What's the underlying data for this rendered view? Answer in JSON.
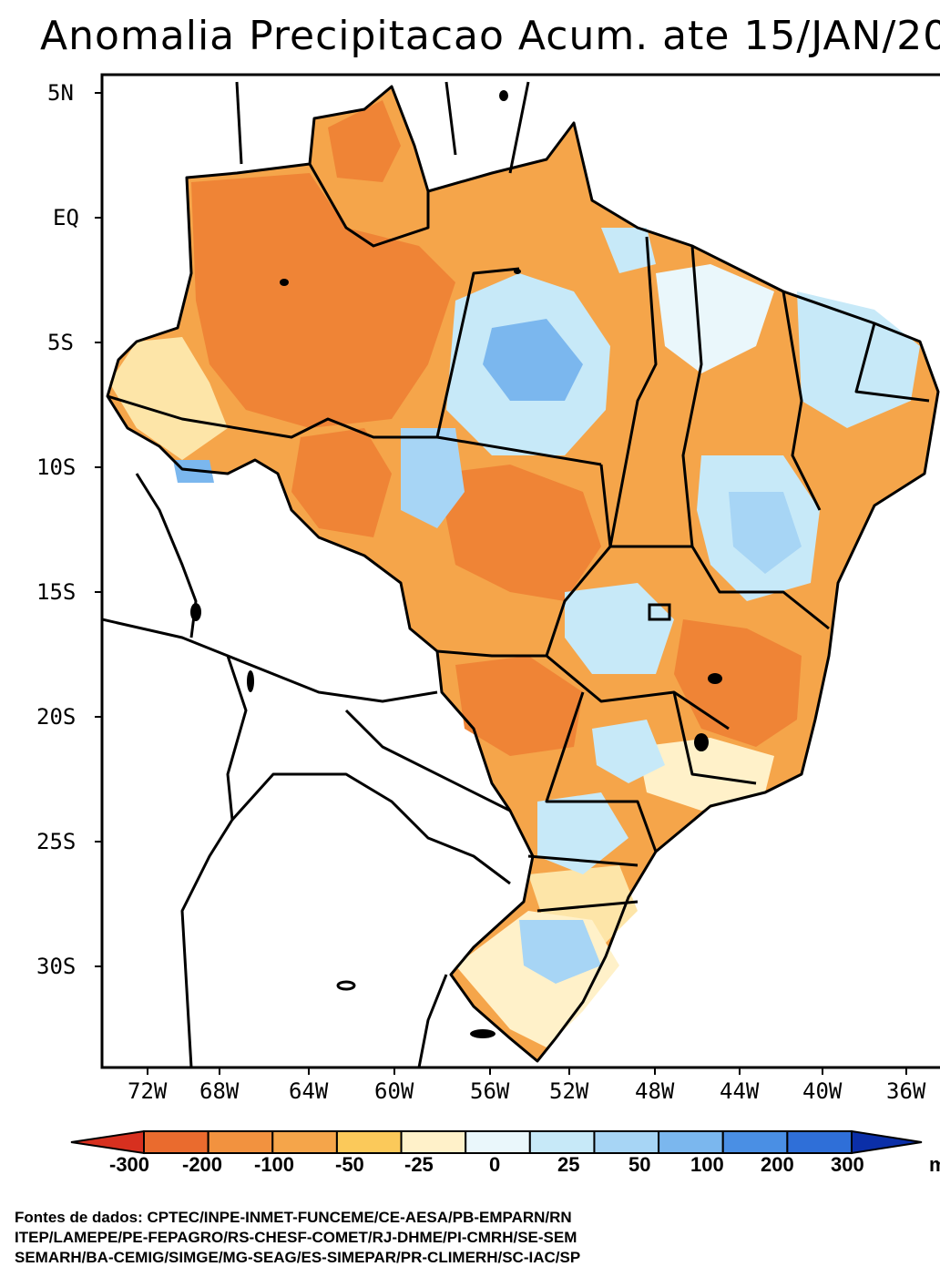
{
  "title": "Anomalia Precipitacao Acum. ate 15/JAN/20",
  "lat_ticks": [
    "5N",
    "EQ",
    "5S",
    "10S",
    "15S",
    "20S",
    "25S",
    "30S"
  ],
  "lon_ticks": [
    "72W",
    "68W",
    "64W",
    "60W",
    "56W",
    "52W",
    "48W",
    "44W",
    "40W",
    "36W"
  ],
  "colorbar": {
    "labels": [
      "-300",
      "-200",
      "-100",
      "-50",
      "-25",
      "0",
      "25",
      "50",
      "100",
      "200",
      "300"
    ],
    "colors": [
      "#d7301f",
      "#ea6b2e",
      "#f2923f",
      "#f5a54a",
      "#fbc95a",
      "#fff1c9",
      "#eaf7fb",
      "#c7e9f8",
      "#a7d5f5",
      "#7bb7ee",
      "#4a8fe4",
      "#2f6fd8",
      "#0b2fa8"
    ],
    "unit_partial": "m"
  },
  "sources": [
    "Fontes de dados: CPTEC/INPE-INMET-FUNCEME/CE-AESA/PB-EMPARN/RN",
    "ITEP/LAMEPE/PE-FEPAGRO/RS-CHESF-COMET/RJ-DHME/PI-CMRH/SE-SEM",
    "SEMARH/BA-CEMIG/SIMGE/MG-SEAG/ES-SIMEPAR/PR-CLIMERH/SC-IAC/SP"
  ],
  "colors": {
    "strong_deficit": "#ea6b2e",
    "deficit": "#f2923f",
    "mild_deficit": "#fbc95a",
    "near_normal": "#fff1c9",
    "mild_surplus": "#c7e9f8",
    "surplus": "#7bb7ee"
  }
}
